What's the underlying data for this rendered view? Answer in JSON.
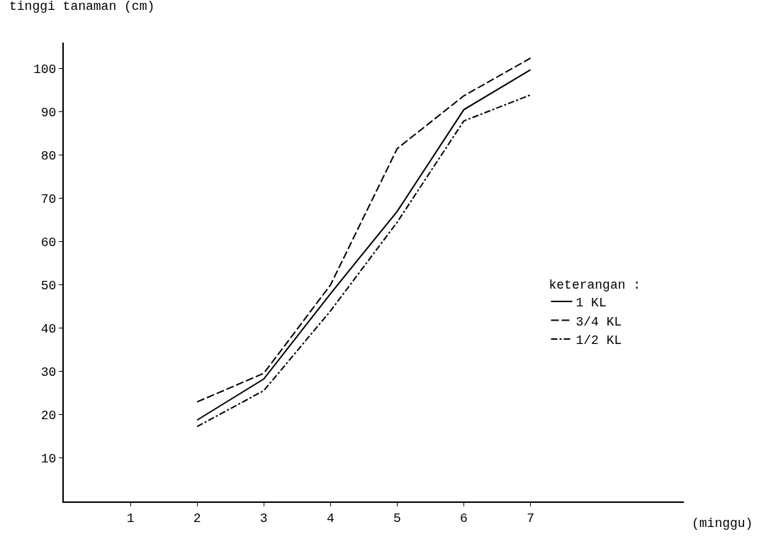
{
  "chart_data": {
    "type": "line",
    "ylabel": "tinggi tanaman (cm)",
    "xlabel": "(minggu)",
    "legend_title": "keterangan :",
    "legend": "right",
    "x": [
      2,
      3,
      4,
      5,
      6,
      7
    ],
    "series": [
      {
        "name": "1 KL",
        "color": "#000000",
        "line_style": "solid",
        "values": [
          18.8,
          28.3,
          48,
          67,
          90.5,
          99.7
        ]
      },
      {
        "name": "3/4 KL",
        "color": "#000000",
        "line_style": "dashed",
        "values": [
          23,
          29.6,
          50,
          81.5,
          93.7,
          102.4
        ]
      },
      {
        "name": "1/2 KL",
        "color": "#000000",
        "line_style": "dashdot",
        "values": [
          17.3,
          25.6,
          44,
          64.5,
          87.9,
          93.9
        ]
      }
    ],
    "marker": "none",
    "xlim": [
      0,
      9.3
    ],
    "xticks": [
      1,
      2,
      3,
      4,
      5,
      6,
      7
    ],
    "ylim": [
      0,
      106
    ],
    "yticks": [
      10,
      20,
      30,
      40,
      50,
      60,
      70,
      80,
      90,
      100
    ]
  }
}
